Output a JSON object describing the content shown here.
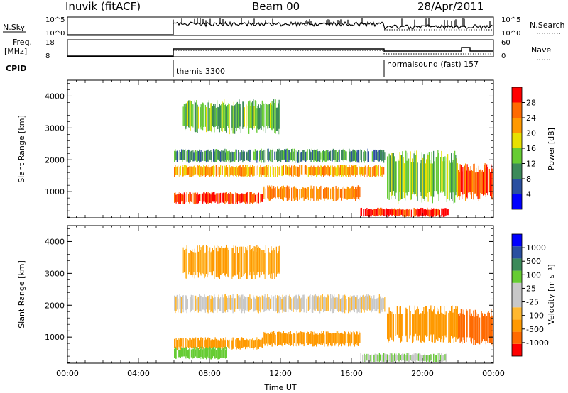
{
  "header": {
    "station": "Inuvik (fitACF)",
    "beam": "Beam 00",
    "date": "28/Apr/2011"
  },
  "noise_panel": {
    "left_label": "N.Sky",
    "right_label": "N.Search",
    "left_ticks": [
      "10^5",
      "10^0"
    ],
    "right_ticks": [
      "10^5",
      "10^0"
    ]
  },
  "freq_panel": {
    "left_label_1": "Freq.",
    "left_label_2": "[MHz]",
    "right_label": "Nave",
    "left_ticks": [
      "18",
      "8"
    ],
    "right_ticks": [
      "60",
      "0"
    ]
  },
  "cpid": {
    "label": "CPID",
    "mode1": "themis 3300",
    "mode2": "normalsound (fast) 157"
  },
  "colors": {
    "power": [
      "#0000ff",
      "#2a4fa0",
      "#3c8a5a",
      "#66cc33",
      "#e8e000",
      "#ff9900",
      "#ff6a00",
      "#ff0000"
    ],
    "velocity": [
      "#ff0000",
      "#ff6a00",
      "#ff9900",
      "#ffb830",
      "#c8c8c8",
      "#c8c8c8",
      "#66cc33",
      "#3c8a5a",
      "#2a4fa0",
      "#0000ff"
    ]
  },
  "chart_data": [
    {
      "type": "heatmap",
      "title": "",
      "xlabel": "",
      "ylabel": "Slant Range [km]",
      "xlim": [
        0,
        24
      ],
      "ylim": [
        180,
        4500
      ],
      "yticks": [
        "1000",
        "2000",
        "3000",
        "4000"
      ],
      "colorbar_label": "Power [dB]",
      "colorbar_ticks": [
        "4",
        "8",
        "12",
        "16",
        "20",
        "24",
        "28"
      ],
      "colorbar_range": [
        0,
        32
      ],
      "bands": [
        {
          "start_ut": 6.0,
          "end_ut": 17.9,
          "range_km": [
            1900,
            2350
          ],
          "value": 10
        },
        {
          "start_ut": 6.0,
          "end_ut": 17.9,
          "range_km": [
            1450,
            1850
          ],
          "value": 22
        },
        {
          "start_ut": 6.0,
          "end_ut": 11.0,
          "range_km": [
            600,
            1000
          ],
          "value": 28
        },
        {
          "start_ut": 11.0,
          "end_ut": 16.5,
          "range_km": [
            700,
            1200
          ],
          "value": 24
        },
        {
          "start_ut": 6.5,
          "end_ut": 12.0,
          "range_km": [
            2800,
            3900
          ],
          "value": 13
        },
        {
          "start_ut": 16.5,
          "end_ut": 21.5,
          "range_km": [
            200,
            500
          ],
          "value": 30
        },
        {
          "start_ut": 18.0,
          "end_ut": 22.0,
          "range_km": [
            600,
            2300
          ],
          "value": 14
        },
        {
          "start_ut": 22.0,
          "end_ut": 24.0,
          "range_km": [
            700,
            1900
          ],
          "value": 27
        }
      ]
    },
    {
      "type": "heatmap",
      "title": "",
      "xlabel": "Time UT",
      "ylabel": "Slant Range [km]",
      "xlim": [
        0,
        24
      ],
      "ylim": [
        180,
        4500
      ],
      "yticks": [
        "1000",
        "2000",
        "3000",
        "4000"
      ],
      "xticks": [
        "00:00",
        "04:00",
        "08:00",
        "12:00",
        "16:00",
        "20:00",
        "00:00"
      ],
      "colorbar_label": "Velocity [m s⁻¹]",
      "colorbar_ticks": [
        "-1000",
        "-500",
        "-100",
        "-25",
        "25",
        "100",
        "500",
        "1000"
      ],
      "bands": [
        {
          "start_ut": 6.0,
          "end_ut": 17.9,
          "range_km": [
            1750,
            2350
          ],
          "value": 0
        },
        {
          "start_ut": 6.0,
          "end_ut": 11.0,
          "range_km": [
            600,
            1000
          ],
          "value": -150
        },
        {
          "start_ut": 11.0,
          "end_ut": 16.5,
          "range_km": [
            700,
            1200
          ],
          "value": -150
        },
        {
          "start_ut": 6.0,
          "end_ut": 9.0,
          "range_km": [
            300,
            700
          ],
          "value": 200
        },
        {
          "start_ut": 16.5,
          "end_ut": 21.5,
          "range_km": [
            200,
            500
          ],
          "value": 80
        },
        {
          "start_ut": 18.0,
          "end_ut": 22.0,
          "range_km": [
            800,
            2000
          ],
          "value": -300
        },
        {
          "start_ut": 22.0,
          "end_ut": 24.0,
          "range_km": [
            700,
            1900
          ],
          "value": -600
        },
        {
          "start_ut": 6.5,
          "end_ut": 12.0,
          "range_km": [
            2800,
            3900
          ],
          "value": -120
        }
      ]
    }
  ]
}
